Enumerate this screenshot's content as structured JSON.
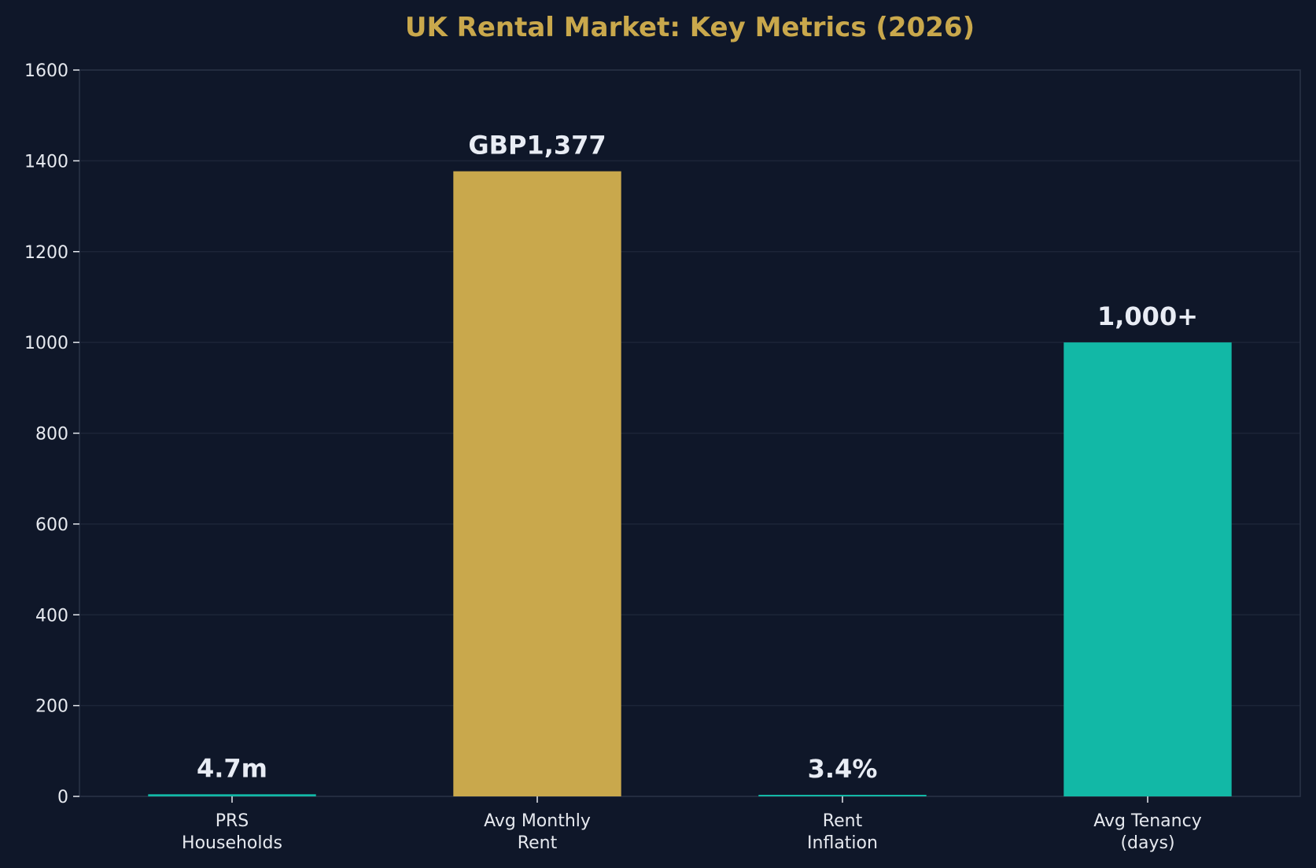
{
  "colors": {
    "background": "#0f1729",
    "plot_background": "#0f1729",
    "title": "#c9a84c",
    "text": "#e6e9ef",
    "grid": "#1c2538",
    "axis": "#2a3347",
    "gold": "#c9a84c",
    "teal": "#12b8a6"
  },
  "chart_data": {
    "type": "bar",
    "title": "UK Rental Market: Key Metrics (2026)",
    "xlabel": "",
    "ylabel": "",
    "ylim": [
      0,
      1600
    ],
    "yticks": [
      0,
      200,
      400,
      600,
      800,
      1000,
      1200,
      1400,
      1600
    ],
    "grid": true,
    "legend": "none",
    "categories": [
      [
        "PRS",
        "Households"
      ],
      [
        "Avg Monthly",
        "Rent"
      ],
      [
        "Rent",
        "Inflation"
      ],
      [
        "Avg Tenancy",
        "(days)"
      ]
    ],
    "values": [
      4.7,
      1377,
      3.4,
      1000
    ],
    "data_labels": [
      "4.7m",
      "GBP1,377",
      "3.4%",
      "1,000+"
    ],
    "bar_colors": [
      "#12b8a6",
      "#c9a84c",
      "#12b8a6",
      "#12b8a6"
    ]
  }
}
